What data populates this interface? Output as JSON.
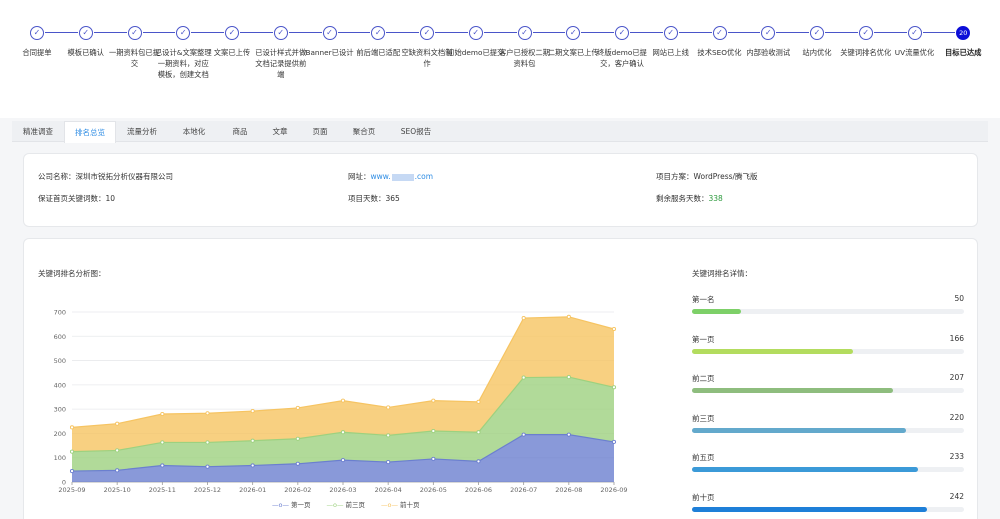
{
  "steps": [
    {
      "num": "✓",
      "label": "合同提单",
      "done": true
    },
    {
      "num": "✓",
      "label": "模板已确认",
      "done": true
    },
    {
      "num": "✓",
      "label": "一期资料包已提交",
      "done": true
    },
    {
      "num": "✓",
      "label": "已设计&文案整理一期资料，对应模板，创建文档",
      "done": true
    },
    {
      "num": "✓",
      "label": "文案已上传",
      "done": true
    },
    {
      "num": "✓",
      "label": "已设计样式并做文档记录提供前端",
      "done": true
    },
    {
      "num": "✓",
      "label": "Banner已设计",
      "done": true
    },
    {
      "num": "✓",
      "label": "前后端已适配",
      "done": true
    },
    {
      "num": "✓",
      "label": "空缺资料文档制作",
      "done": true
    },
    {
      "num": "✓",
      "label": "初始demo已提交",
      "done": true
    },
    {
      "num": "✓",
      "label": "客户已授权二期资料包",
      "done": true
    },
    {
      "num": "✓",
      "label": "二期文案已上传",
      "done": true
    },
    {
      "num": "✓",
      "label": "终版demo已提交，客户确认",
      "done": true
    },
    {
      "num": "✓",
      "label": "网站已上线",
      "done": true
    },
    {
      "num": "✓",
      "label": "技术SEO优化",
      "done": true
    },
    {
      "num": "✓",
      "label": "内部验收测试",
      "done": true
    },
    {
      "num": "✓",
      "label": "站内优化",
      "done": true
    },
    {
      "num": "✓",
      "label": "关键词排名优化",
      "done": true
    },
    {
      "num": "✓",
      "label": "UV流量优化",
      "done": true
    },
    {
      "num": "20",
      "label": "目标已达成",
      "done": false
    }
  ],
  "tabs": [
    "精准调查",
    "排名总览",
    "流量分析",
    "本地化",
    "商品",
    "文章",
    "页面",
    "聚合页",
    "SEO报告"
  ],
  "active_tab": 1,
  "info": {
    "company_label": "公司名称：",
    "company_value": "深圳市锐拓分析仪器有限公司",
    "site_label": "网址：",
    "site_prefix": "www.",
    "site_suffix": ".com",
    "plan_label": "项目方案：",
    "plan_value": "WordPress/腾飞版",
    "keywords_label": "保证首页关键词数：",
    "keywords_value": "10",
    "days_label": "项目天数：",
    "days_value": "365",
    "remain_label": "剩余服务天数：",
    "remain_value": "338"
  },
  "chart_title": "关键词排名分析图：",
  "rank_title": "关键词排名详情：",
  "ranks": [
    {
      "label": "第一名",
      "value": 50,
      "color": "#7dd068"
    },
    {
      "label": "第一页",
      "value": 166,
      "color": "#b3dc5e"
    },
    {
      "label": "前二页",
      "value": 207,
      "color": "#8ebd7e"
    },
    {
      "label": "前三页",
      "value": 220,
      "color": "#63a9cc"
    },
    {
      "label": "前五页",
      "value": 233,
      "color": "#3b9ad8"
    },
    {
      "label": "前十页",
      "value": 242,
      "color": "#1e7fd8"
    }
  ],
  "chart_data": {
    "type": "area",
    "categories": [
      "2025-09",
      "2025-10",
      "2025-11",
      "2025-12",
      "2026-01",
      "2026-02",
      "2026-03",
      "2026-04",
      "2026-05",
      "2026-06",
      "2026-07",
      "2026-08",
      "2026-09"
    ],
    "stacked": true,
    "ylim": [
      0,
      700
    ],
    "yticks": [
      0,
      100,
      200,
      300,
      400,
      500,
      600,
      700
    ],
    "series": [
      {
        "name": "第一页",
        "values": [
          45,
          48,
          68,
          63,
          68,
          75,
          90,
          82,
          95,
          85,
          195,
          195,
          165
        ],
        "color": "#6b7fcf"
      },
      {
        "name": "前三页",
        "values": [
          80,
          82,
          95,
          100,
          102,
          103,
          115,
          110,
          115,
          120,
          235,
          237,
          225
        ],
        "color": "#9dd17f"
      },
      {
        "name": "前十页",
        "values": [
          100,
          110,
          117,
          120,
          122,
          127,
          130,
          115,
          125,
          125,
          245,
          248,
          240
        ],
        "color": "#f6c462"
      }
    ],
    "legend": "bottom"
  }
}
